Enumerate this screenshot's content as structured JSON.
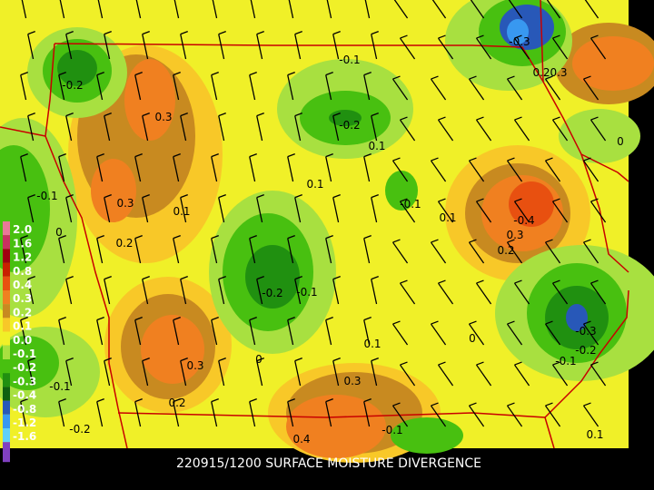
{
  "footer": {
    "title": "220915/1200 SURFACE MOISTURE DIVERGENCE"
  },
  "legend": {
    "levels": [
      {
        "label": "2.0",
        "color": "#e87898"
      },
      {
        "label": "1.6",
        "color": "#c83060"
      },
      {
        "label": "1.2",
        "color": "#a00010"
      },
      {
        "label": "0.8",
        "color": "#c82000"
      },
      {
        "label": "0.4",
        "color": "#e85010"
      },
      {
        "label": "0.3",
        "color": "#f08020"
      },
      {
        "label": "0.2",
        "color": "#c88a20"
      },
      {
        "label": "0.1",
        "color": "#f8c828"
      },
      {
        "label": "0.0",
        "color": "#f0f028"
      },
      {
        "label": "-0.1",
        "color": "#a8e040"
      },
      {
        "label": "-0.2",
        "color": "#48c010"
      },
      {
        "label": "-0.3",
        "color": "#209010"
      },
      {
        "label": "-0.4",
        "color": "#106010"
      },
      {
        "label": "-0.8",
        "color": "#2858b8"
      },
      {
        "label": "-1.2",
        "color": "#3898f0"
      },
      {
        "label": "-1.6",
        "color": "#60d0f8"
      }
    ]
  },
  "contour_labels": [
    "-0.2",
    "-0.1",
    "0.3",
    "0.3",
    "0.1",
    "0.2",
    "-0.2",
    "-0.1",
    "0.3",
    "0.2",
    "0",
    "0.1",
    "0.3",
    "0.4",
    "-0.1",
    "0.1",
    "-0.1",
    "-0.2",
    "-0.3",
    "0.2",
    "0.3",
    "-0.4",
    "0.1",
    "-0.1",
    "0.1",
    "0.1",
    "-0.2",
    "0",
    "0",
    "-0.1",
    "-0.2",
    "-0.1",
    "0",
    "0.2",
    "0.3",
    "-0.3"
  ]
}
